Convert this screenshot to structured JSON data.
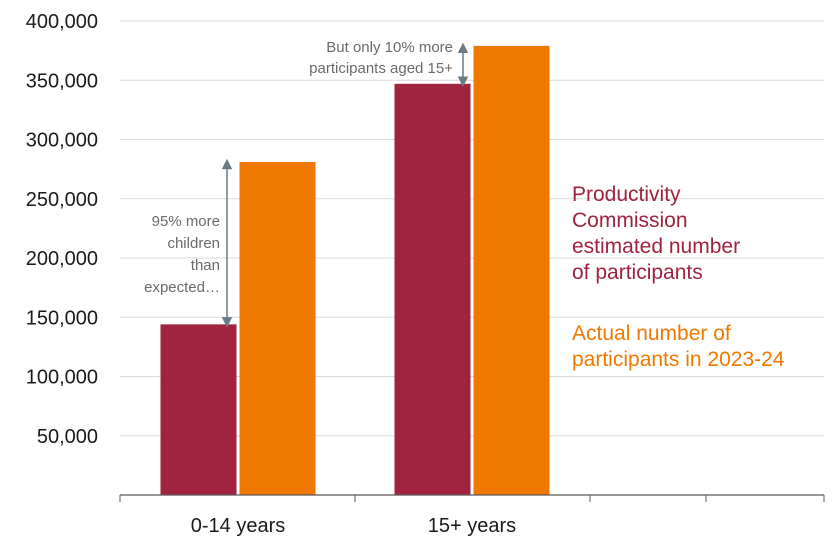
{
  "chart_data": {
    "type": "bar",
    "categories": [
      "0-14 years",
      "15+ years"
    ],
    "series": [
      {
        "name": "Productivity Commission estimated number of participants",
        "legend_lines": [
          "Productivity",
          "Commission",
          "estimated number",
          "of participants"
        ],
        "color": "#A0233F",
        "values": [
          144000,
          347000
        ]
      },
      {
        "name": "Actual number of participants in 2023-24",
        "legend_lines": [
          "Actual number of",
          "participants in 2023-24"
        ],
        "color": "#F07800",
        "values": [
          281000,
          379000
        ]
      }
    ],
    "ylim": [
      0,
      400000
    ],
    "yticks": [
      "50,000",
      "100,000",
      "150,000",
      "200,000",
      "250,000",
      "300,000",
      "350,000",
      "400,000"
    ],
    "ytick_values": [
      50000,
      100000,
      150000,
      200000,
      250000,
      300000,
      350000,
      400000
    ],
    "grid": true,
    "annotations": {
      "children": {
        "lines": [
          "95% more",
          "children",
          "than",
          "expected…"
        ],
        "from_value": 144000,
        "to_value": 281000
      },
      "adults": {
        "lines": [
          "But only 10% more",
          "participants aged 15+"
        ],
        "from_value": 347000,
        "to_value": 379000
      }
    },
    "grid_color": "#d9d9d9",
    "arrow_color": "#6b7b86"
  }
}
